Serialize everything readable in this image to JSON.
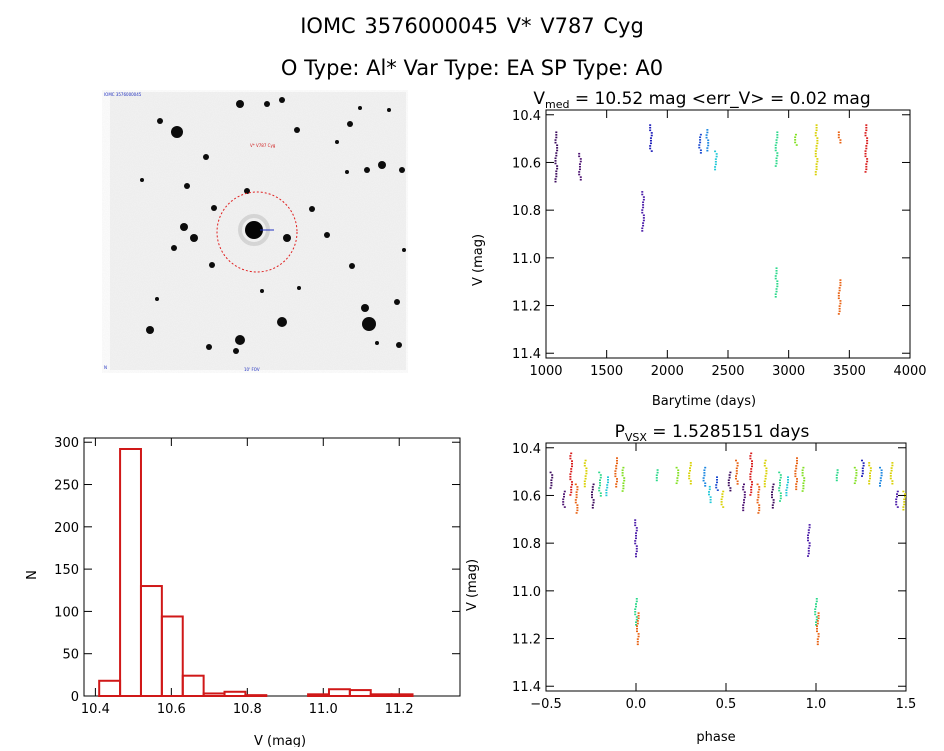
{
  "header": {
    "title_line1": "IOMC 3576000045     V* V787 Cyg",
    "title_line2": "O Type: Al*   Var Type: EA   SP Type: A0"
  },
  "sky_image": {
    "target_label": "V* V787 Cyg",
    "corner_tl": "IOMC 3576000045",
    "corner_bl": "N",
    "corner_bottom": "10' FOV"
  },
  "chart_data": [
    {
      "type": "scatter",
      "id": "lightcurve",
      "title_main": "V",
      "title_sub": "med",
      "title_rest": " = 10.52 mag <err_V> = 0.02 mag",
      "xlabel": "Barytime (days)",
      "ylabel": "V (mag)",
      "xlim": [
        1000,
        4000
      ],
      "ylim": [
        11.42,
        10.38
      ],
      "xticks": [
        1000,
        1500,
        2000,
        2500,
        3000,
        3500,
        4000
      ],
      "yticks": [
        10.4,
        10.6,
        10.8,
        11.0,
        11.2,
        11.4
      ],
      "ytick_labels": [
        "10.4",
        "10.6",
        "10.8",
        "11.0",
        "11.2",
        "11.4"
      ],
      "groups": [
        {
          "x": 1085,
          "ymin": 10.47,
          "ymax": 10.68,
          "color": "#3b0a5c"
        },
        {
          "x": 1280,
          "ymin": 10.56,
          "ymax": 10.67,
          "color": "#4b1070"
        },
        {
          "x": 1800,
          "ymin": 10.72,
          "ymax": 10.89,
          "color": "#4a1aa8"
        },
        {
          "x": 1865,
          "ymin": 10.44,
          "ymax": 10.55,
          "color": "#1a1ab8"
        },
        {
          "x": 2270,
          "ymin": 10.48,
          "ymax": 10.56,
          "color": "#1a4ad0"
        },
        {
          "x": 2330,
          "ymin": 10.46,
          "ymax": 10.55,
          "color": "#1a86e0"
        },
        {
          "x": 2400,
          "ymin": 10.55,
          "ymax": 10.63,
          "color": "#20c8d8"
        },
        {
          "x": 2900,
          "ymin": 10.47,
          "ymax": 10.62,
          "color": "#2ad88a"
        },
        {
          "x": 2900,
          "ymin": 11.04,
          "ymax": 11.17,
          "color": "#2ad88a"
        },
        {
          "x": 3060,
          "ymin": 10.48,
          "ymax": 10.53,
          "color": "#80e020"
        },
        {
          "x": 3230,
          "ymin": 10.44,
          "ymax": 10.65,
          "color": "#d8d000"
        },
        {
          "x": 3420,
          "ymin": 10.47,
          "ymax": 10.52,
          "color": "#e86010"
        },
        {
          "x": 3420,
          "ymin": 11.09,
          "ymax": 11.24,
          "color": "#e86010"
        },
        {
          "x": 3640,
          "ymin": 10.44,
          "ymax": 10.64,
          "color": "#d81818"
        }
      ]
    },
    {
      "type": "bar",
      "id": "histogram",
      "xlabel": "V (mag)",
      "ylabel": "N",
      "xlim": [
        10.37,
        11.36
      ],
      "ylim": [
        0,
        305
      ],
      "xticks": [
        10.4,
        10.6,
        10.8,
        11.0,
        11.2
      ],
      "xtick_labels": [
        "10.4",
        "10.6",
        "10.8",
        "11.0",
        "11.2"
      ],
      "yticks": [
        0,
        50,
        100,
        150,
        200,
        250,
        300
      ],
      "bin_edges": [
        10.41,
        10.465,
        10.52,
        10.575,
        10.63,
        10.685,
        10.74,
        10.795,
        10.85,
        10.905,
        10.96,
        11.015,
        11.07,
        11.125,
        11.18,
        11.235,
        11.29
      ],
      "counts": [
        18,
        292,
        130,
        94,
        24,
        3,
        5,
        1,
        0,
        0,
        2,
        8,
        7,
        2,
        2,
        0
      ],
      "color": "#d01818"
    },
    {
      "type": "scatter",
      "id": "phased",
      "title_main": "P",
      "title_sub": "VSX",
      "title_rest": " = 1.5285151 days",
      "xlabel": "phase",
      "ylabel": "V (mag)",
      "xlim": [
        -0.5,
        1.5
      ],
      "ylim": [
        11.42,
        10.38
      ],
      "xticks": [
        -0.5,
        0.0,
        0.5,
        1.0,
        1.5
      ],
      "xtick_labels": [
        "−0.5",
        "0.0",
        "0.5",
        "1.0",
        "1.5"
      ],
      "yticks": [
        10.4,
        10.6,
        10.8,
        11.0,
        11.2,
        11.4
      ],
      "ytick_labels": [
        "10.4",
        "10.6",
        "10.8",
        "11.0",
        "11.2",
        "11.4"
      ],
      "groups": [
        {
          "x": -0.47,
          "ymin": 10.5,
          "ymax": 10.57,
          "color": "#3b0a5c"
        },
        {
          "x": -0.4,
          "ymin": 10.58,
          "ymax": 10.65,
          "color": "#4b1070"
        },
        {
          "x": -0.36,
          "ymin": 10.42,
          "ymax": 10.6,
          "color": "#d81818"
        },
        {
          "x": -0.33,
          "ymin": 10.55,
          "ymax": 10.68,
          "color": "#e86010"
        },
        {
          "x": -0.28,
          "ymin": 10.45,
          "ymax": 10.56,
          "color": "#d8d000"
        },
        {
          "x": -0.24,
          "ymin": 10.55,
          "ymax": 10.65,
          "color": "#3b0a5c"
        },
        {
          "x": -0.2,
          "ymin": 10.5,
          "ymax": 10.6,
          "color": "#2ad88a"
        },
        {
          "x": -0.16,
          "ymin": 10.52,
          "ymax": 10.6,
          "color": "#20c8d8"
        },
        {
          "x": -0.11,
          "ymin": 10.44,
          "ymax": 10.56,
          "color": "#e86010"
        },
        {
          "x": -0.07,
          "ymin": 10.48,
          "ymax": 10.58,
          "color": "#80e020"
        },
        {
          "x": 0.0,
          "ymin": 10.7,
          "ymax": 10.86,
          "color": "#4a1aa8"
        },
        {
          "x": 0.0,
          "ymin": 11.03,
          "ymax": 11.14,
          "color": "#2ad88a"
        },
        {
          "x": 0.01,
          "ymin": 11.09,
          "ymax": 11.23,
          "color": "#e86010"
        },
        {
          "x": 0.12,
          "ymin": 10.49,
          "ymax": 10.54,
          "color": "#2ad88a"
        },
        {
          "x": 0.23,
          "ymin": 10.48,
          "ymax": 10.55,
          "color": "#80e020"
        },
        {
          "x": 0.3,
          "ymin": 10.46,
          "ymax": 10.55,
          "color": "#d8d000"
        },
        {
          "x": 0.38,
          "ymin": 10.48,
          "ymax": 10.56,
          "color": "#1a86e0"
        },
        {
          "x": 0.41,
          "ymin": 10.56,
          "ymax": 10.63,
          "color": "#20c8d8"
        },
        {
          "x": 0.45,
          "ymin": 10.52,
          "ymax": 10.58,
          "color": "#1a4ad0"
        },
        {
          "x": 0.48,
          "ymin": 10.58,
          "ymax": 10.65,
          "color": "#d8d000"
        },
        {
          "x": 0.52,
          "ymin": 10.5,
          "ymax": 10.58,
          "color": "#3b0a5c"
        },
        {
          "x": 0.56,
          "ymin": 10.45,
          "ymax": 10.55,
          "color": "#e86010"
        },
        {
          "x": 0.6,
          "ymin": 10.55,
          "ymax": 10.66,
          "color": "#4b1070"
        },
        {
          "x": 0.64,
          "ymin": 10.42,
          "ymax": 10.6,
          "color": "#d81818"
        },
        {
          "x": 0.68,
          "ymin": 10.55,
          "ymax": 10.68,
          "color": "#e86010"
        },
        {
          "x": 0.72,
          "ymin": 10.45,
          "ymax": 10.56,
          "color": "#d8d000"
        },
        {
          "x": 0.76,
          "ymin": 10.55,
          "ymax": 10.65,
          "color": "#3b0a5c"
        },
        {
          "x": 0.8,
          "ymin": 10.5,
          "ymax": 10.62,
          "color": "#2ad88a"
        },
        {
          "x": 0.84,
          "ymin": 10.52,
          "ymax": 10.6,
          "color": "#20c8d8"
        },
        {
          "x": 0.89,
          "ymin": 10.44,
          "ymax": 10.58,
          "color": "#e86010"
        },
        {
          "x": 0.93,
          "ymin": 10.48,
          "ymax": 10.58,
          "color": "#80e020"
        },
        {
          "x": 0.96,
          "ymin": 10.72,
          "ymax": 10.86,
          "color": "#4a1aa8"
        },
        {
          "x": 1.0,
          "ymin": 11.03,
          "ymax": 11.14,
          "color": "#2ad88a"
        },
        {
          "x": 1.01,
          "ymin": 11.09,
          "ymax": 11.23,
          "color": "#e86010"
        },
        {
          "x": 1.12,
          "ymin": 10.49,
          "ymax": 10.54,
          "color": "#2ad88a"
        },
        {
          "x": 1.22,
          "ymin": 10.48,
          "ymax": 10.55,
          "color": "#80e020"
        },
        {
          "x": 1.26,
          "ymin": 10.45,
          "ymax": 10.52,
          "color": "#1a1ab8"
        },
        {
          "x": 1.3,
          "ymin": 10.46,
          "ymax": 10.55,
          "color": "#d8d000"
        },
        {
          "x": 1.36,
          "ymin": 10.48,
          "ymax": 10.56,
          "color": "#1a86e0"
        },
        {
          "x": 1.42,
          "ymin": 10.46,
          "ymax": 10.55,
          "color": "#d8d000"
        },
        {
          "x": 1.45,
          "ymin": 10.58,
          "ymax": 10.65,
          "color": "#4a1aa8"
        },
        {
          "x": 1.49,
          "ymin": 10.58,
          "ymax": 10.66,
          "color": "#d8d000"
        }
      ]
    }
  ]
}
